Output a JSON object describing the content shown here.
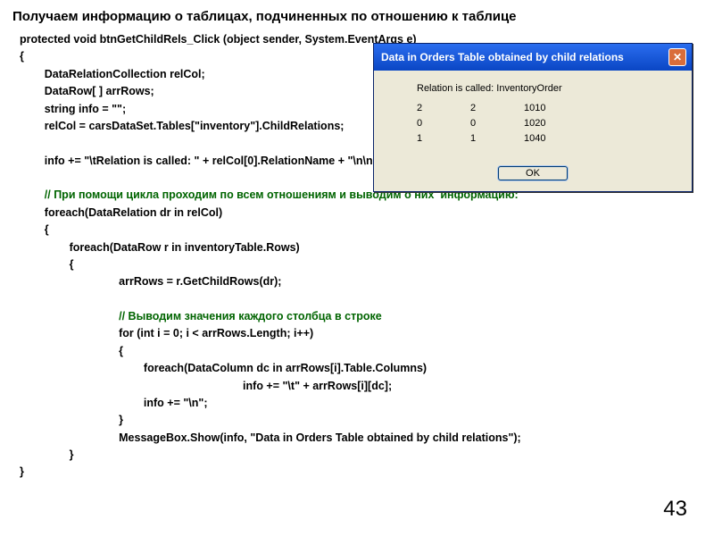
{
  "heading": "Получаем информацию о таблицах, подчиненных по отношению к таблице",
  "page_number": "43",
  "code": {
    "l1": "protected void btnGetChildRels_Click (object sender, System.EventArgs e)",
    "l2": "{",
    "l3": "        DataRelationCollection relCol;",
    "l4": "        DataRow[ ] arrRows;",
    "l5": "        string info = \"\";",
    "l6": "        relCol = carsDataSet.Tables[\"inventory\"].ChildRelations;",
    "l7": " ",
    "l8": "        info += \"\\tRelation is called: \" + relCol[0].RelationName + \"\\n\\n\";",
    "l9": " ",
    "c1": "        // При помощи цикла проходим по всем отношениям и выводим о них  информацию:",
    "l10": "        foreach(DataRelation dr in relCol)",
    "l11": "        {",
    "l12": "                foreach(DataRow r in inventoryTable.Rows)",
    "l13": "                {",
    "l14": "                                arrRows = r.GetChildRows(dr);",
    "l15": " ",
    "c2": "                                // Выводим значения каждого столбца в строке",
    "l16": "                                for (int i = 0; i < arrRows.Length; i++)",
    "l17": "                                {",
    "l18": "                                        foreach(DataColumn dc in arrRows[i].Table.Columns)",
    "l19": "                                                                        info += \"\\t\" + arrRows[i][dc];",
    "l20": "                                        info += \"\\n\";",
    "l21": "                                }",
    "l22": "                                MessageBox.Show(info, \"Data in Orders Table obtained by child relations\");",
    "l23": "                }",
    "l24": "}"
  },
  "dialog": {
    "title": "Data in Orders Table obtained by child relations",
    "relation_line": "Relation is called: InventoryOrder",
    "rows": [
      {
        "a": "2",
        "b": "2",
        "c": "1010"
      },
      {
        "a": "0",
        "b": "0",
        "c": "1020"
      },
      {
        "a": "1",
        "b": "1",
        "c": "1040"
      }
    ],
    "ok_label": "OK",
    "close_glyph": "✕",
    "colors": {
      "titlebar_top": "#2a6def",
      "titlebar_bottom": "#0a46c4",
      "body_bg": "#ece9d8",
      "close_bg": "#d96d3b",
      "border": "#0a246a"
    }
  }
}
